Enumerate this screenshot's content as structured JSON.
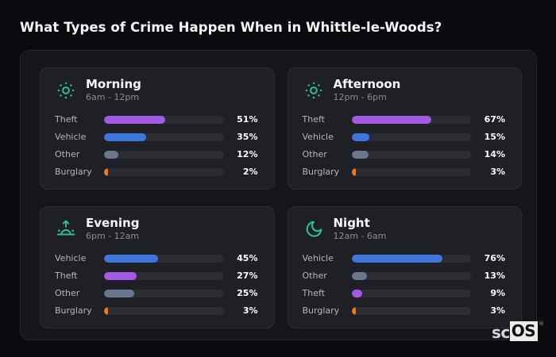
{
  "page_title": "What Types of Crime Happen When in Whittle-le-Woods?",
  "colors": {
    "purple": "#a259e6",
    "blue": "#3e76e0",
    "slate": "#68778d",
    "orange": "#ee7a1c",
    "icon_teal": "#2cc295",
    "card_bg": "#1e2025",
    "panel_bg": "#15161b",
    "page_bg": "#0a0b0e",
    "track": "#2b2d33"
  },
  "cards": [
    {
      "icon": "sun-icon",
      "title": "Morning",
      "time_range": "6am - 12pm",
      "rows": [
        {
          "label": "Theft",
          "value": 51,
          "value_label": "51%",
          "color": "purple"
        },
        {
          "label": "Vehicle",
          "value": 35,
          "value_label": "35%",
          "color": "blue"
        },
        {
          "label": "Other",
          "value": 12,
          "value_label": "12%",
          "color": "slate"
        },
        {
          "label": "Burglary",
          "value": 2,
          "value_label": "2%",
          "color": "orange"
        }
      ]
    },
    {
      "icon": "sun-icon",
      "title": "Afternoon",
      "time_range": "12pm - 6pm",
      "rows": [
        {
          "label": "Theft",
          "value": 67,
          "value_label": "67%",
          "color": "purple"
        },
        {
          "label": "Vehicle",
          "value": 15,
          "value_label": "15%",
          "color": "blue"
        },
        {
          "label": "Other",
          "value": 14,
          "value_label": "14%",
          "color": "slate"
        },
        {
          "label": "Burglary",
          "value": 3,
          "value_label": "3%",
          "color": "orange"
        }
      ]
    },
    {
      "icon": "sunrise-icon",
      "title": "Evening",
      "time_range": "6pm - 12am",
      "rows": [
        {
          "label": "Vehicle",
          "value": 45,
          "value_label": "45%",
          "color": "blue"
        },
        {
          "label": "Theft",
          "value": 27,
          "value_label": "27%",
          "color": "purple"
        },
        {
          "label": "Other",
          "value": 25,
          "value_label": "25%",
          "color": "slate"
        },
        {
          "label": "Burglary",
          "value": 3,
          "value_label": "3%",
          "color": "orange"
        }
      ]
    },
    {
      "icon": "moon-icon",
      "title": "Night",
      "time_range": "12am - 6am",
      "rows": [
        {
          "label": "Vehicle",
          "value": 76,
          "value_label": "76%",
          "color": "blue"
        },
        {
          "label": "Other",
          "value": 13,
          "value_label": "13%",
          "color": "slate"
        },
        {
          "label": "Theft",
          "value": 9,
          "value_label": "9%",
          "color": "purple"
        },
        {
          "label": "Burglary",
          "value": 3,
          "value_label": "3%",
          "color": "orange"
        }
      ]
    }
  ],
  "chart_data": [
    {
      "type": "bar",
      "orientation": "horizontal",
      "title": "Morning",
      "subtitle": "6am - 12pm",
      "categories": [
        "Theft",
        "Vehicle",
        "Other",
        "Burglary"
      ],
      "values": [
        51,
        35,
        12,
        2
      ],
      "unit": "%",
      "xlim": [
        0,
        100
      ],
      "grid": false,
      "legend": false
    },
    {
      "type": "bar",
      "orientation": "horizontal",
      "title": "Afternoon",
      "subtitle": "12pm - 6pm",
      "categories": [
        "Theft",
        "Vehicle",
        "Other",
        "Burglary"
      ],
      "values": [
        67,
        15,
        14,
        3
      ],
      "unit": "%",
      "xlim": [
        0,
        100
      ],
      "grid": false,
      "legend": false
    },
    {
      "type": "bar",
      "orientation": "horizontal",
      "title": "Evening",
      "subtitle": "6pm - 12am",
      "categories": [
        "Vehicle",
        "Theft",
        "Other",
        "Burglary"
      ],
      "values": [
        45,
        27,
        25,
        3
      ],
      "unit": "%",
      "xlim": [
        0,
        100
      ],
      "grid": false,
      "legend": false
    },
    {
      "type": "bar",
      "orientation": "horizontal",
      "title": "Night",
      "subtitle": "12am - 6am",
      "categories": [
        "Vehicle",
        "Other",
        "Theft",
        "Burglary"
      ],
      "values": [
        76,
        13,
        9,
        3
      ],
      "unit": "%",
      "xlim": [
        0,
        100
      ],
      "grid": false,
      "legend": false
    }
  ],
  "logo": {
    "prefix": "sc",
    "suffix": "OS",
    "registered": "®"
  }
}
